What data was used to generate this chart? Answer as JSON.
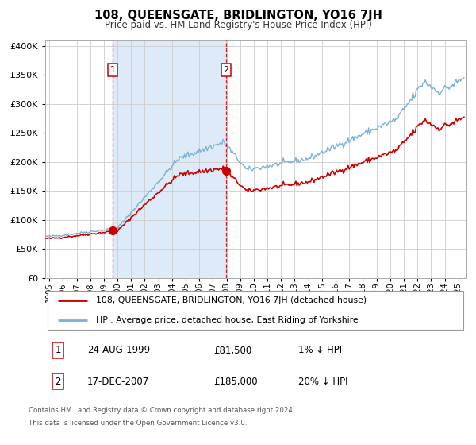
{
  "title": "108, QUEENSGATE, BRIDLINGTON, YO16 7JH",
  "subtitle": "Price paid vs. HM Land Registry's House Price Index (HPI)",
  "sale1_date_str": "24-AUG-1999",
  "sale2_date_str": "17-DEC-2007",
  "sale1_price_str": "£81,500",
  "sale2_price_str": "£185,000",
  "sale1_hpi_pct": "1% ↓ HPI",
  "sale2_hpi_pct": "20% ↓ HPI",
  "legend_line1": "108, QUEENSGATE, BRIDLINGTON, YO16 7JH (detached house)",
  "legend_line2": "HPI: Average price, detached house, East Riding of Yorkshire",
  "footer_line1": "Contains HM Land Registry data © Crown copyright and database right 2024.",
  "footer_line2": "This data is licensed under the Open Government Licence v3.0.",
  "sale_color": "#cc0000",
  "hpi_color": "#7ab0d8",
  "shade_color": "#ddeaf7",
  "grid_color": "#cccccc",
  "ylim_min": 0,
  "ylim_max": 410000,
  "yticks": [
    0,
    50000,
    100000,
    150000,
    200000,
    250000,
    300000,
    350000,
    400000
  ],
  "xlim_min": 1994.7,
  "xlim_max": 2025.6,
  "sale1_t": 1999.6384,
  "sale2_t": 2007.9589,
  "sale1_price": 81500,
  "sale2_price": 185000,
  "hpi_seed": 42,
  "noise_scale": 0.012
}
